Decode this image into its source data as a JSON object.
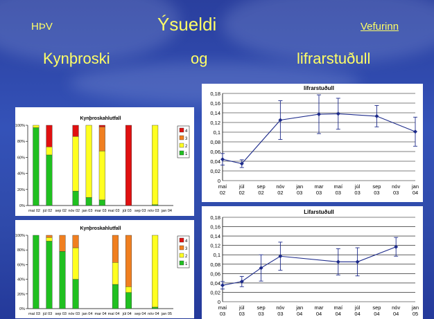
{
  "header": {
    "org": "HÞV",
    "title": "Ýsueldi",
    "link": "Vefurinn"
  },
  "subtitle": {
    "word1": "Kynþroski",
    "word2": "og",
    "word3": "lifrarstuðull"
  },
  "colors": {
    "text": "#ffff66",
    "bg": "#2f4aaa",
    "line": "#1c2a8a",
    "stage4": "#e01010",
    "stage3": "#f07f20",
    "stage2": "#ffff20",
    "stage1": "#20c020"
  },
  "chart_data": [
    {
      "type": "line",
      "title": "lifrarstuðull",
      "x": [
        "maí 02",
        "júl 02",
        "nóv 02",
        "mar 03",
        "maí 03",
        "sep 03",
        "jan 04"
      ],
      "values": [
        0.044,
        0.035,
        0.125,
        0.137,
        0.138,
        0.133,
        0.101
      ],
      "errors": [
        0.012,
        0.008,
        0.04,
        0.04,
        0.032,
        0.022,
        0.03
      ],
      "ticks_x": [
        "maí 02",
        "júl 02",
        "sep 02",
        "nóv 02",
        "jan 03",
        "mar 03",
        "maí 03",
        "júl 03",
        "sep 03",
        "nóv 03",
        "jan 04"
      ],
      "ticks_y": [
        "0",
        "0,02",
        "0,04",
        "0,06",
        "0,08",
        "0,1",
        "0,12",
        "0,14",
        "0,16",
        "0,18"
      ],
      "ylim": [
        0,
        0.18
      ]
    },
    {
      "type": "line",
      "title": "Lifarstuðull",
      "x": [
        "maí 03",
        "júl 03",
        "sep 03",
        "nóv 03",
        "maí 04",
        "júl 04",
        "nóv 04"
      ],
      "values": [
        0.035,
        0.043,
        0.072,
        0.097,
        0.085,
        0.085,
        0.117
      ],
      "errors": [
        0.008,
        0.011,
        0.028,
        0.03,
        0.028,
        0.03,
        0.02
      ],
      "ticks_x": [
        "maí 03",
        "júl 03",
        "sep 03",
        "nóv 03",
        "jan 04",
        "mar 04",
        "maí 04",
        "júl 04",
        "sep 04",
        "nóv 04",
        "jan 05"
      ],
      "ticks_y": [
        "0",
        "0,02",
        "0,04",
        "0,06",
        "0,08",
        "0,1",
        "0,12",
        "0,14",
        "0,16",
        "0,18"
      ],
      "ylim": [
        0,
        0.18
      ]
    },
    {
      "type": "bar",
      "title": "Kynþroskahlutfall",
      "categories": [
        "maí 02",
        "júl 02",
        "sep 02",
        "nóv 02",
        "jan 03",
        "mar 03",
        "maí 03",
        "júl 03",
        "sep 03",
        "nóv 03",
        "jan 04"
      ],
      "ticks_y": [
        "0%",
        "20%",
        "40%",
        "60%",
        "80%",
        "100%"
      ],
      "legend": [
        "4",
        "3",
        "2",
        "1"
      ],
      "series": [
        {
          "name": "4",
          "values": [
            0,
            0,
            0,
            0,
            0,
            0,
            0,
            0,
            0,
            0,
            0
          ]
        },
        {
          "name": "3",
          "values": [
            0,
            0,
            0,
            0,
            0,
            0,
            0,
            0,
            0,
            0,
            0
          ]
        },
        {
          "name": "2",
          "values": [
            0,
            0,
            0,
            0,
            0,
            0,
            0,
            0,
            0,
            0,
            0
          ]
        },
        {
          "name": "1",
          "values": [
            0,
            0,
            0,
            0,
            0,
            0,
            0,
            0,
            0,
            0,
            0
          ]
        }
      ],
      "slots": [
        [
          [
            1,
            97
          ],
          [
            2,
            3
          ]
        ],
        [
          [
            1,
            63
          ],
          [
            2,
            10
          ],
          [
            4,
            27
          ]
        ],
        [],
        [
          [
            1,
            18
          ],
          [
            2,
            68
          ],
          [
            4,
            14
          ]
        ],
        [
          [
            1,
            10
          ],
          [
            2,
            90
          ]
        ],
        [
          [
            1,
            7
          ],
          [
            2,
            61
          ],
          [
            3,
            30
          ],
          [
            4,
            2
          ]
        ],
        [],
        [
          [
            4,
            100
          ]
        ],
        [],
        [
          [
            1,
            1
          ],
          [
            2,
            99
          ]
        ],
        []
      ],
      "slot_labels": [
        "maí 02",
        "júl 02",
        "sep 02",
        "nóv 02",
        "jan 03",
        "mar 03",
        "maí 03",
        "júl 03",
        "sep 03",
        "nóv 03",
        "jan 04"
      ]
    },
    {
      "type": "bar",
      "title": "Kynþroskahlutfall",
      "categories": [
        "maí 03",
        "júl 03",
        "sep 03",
        "nóv 03",
        "jan 04",
        "mar 04",
        "maí 04",
        "júl 04",
        "sep 04",
        "nóv 04",
        "jan 05"
      ],
      "ticks_y": [
        "0%",
        "20%",
        "40%",
        "60%",
        "80%",
        "100%"
      ],
      "legend": [
        "4",
        "3",
        "2",
        "1"
      ],
      "slots": [
        [
          [
            1,
            100
          ]
        ],
        [
          [
            1,
            92
          ],
          [
            2,
            5
          ],
          [
            3,
            3
          ]
        ],
        [
          [
            1,
            78
          ],
          [
            3,
            22
          ]
        ],
        [
          [
            1,
            40
          ],
          [
            2,
            43
          ],
          [
            3,
            17
          ]
        ],
        [],
        [],
        [
          [
            1,
            33
          ],
          [
            2,
            30
          ],
          [
            3,
            37
          ]
        ],
        [
          [
            1,
            22
          ],
          [
            2,
            8
          ],
          [
            3,
            70
          ]
        ],
        [],
        [
          [
            1,
            2
          ],
          [
            2,
            98
          ]
        ],
        []
      ]
    }
  ]
}
